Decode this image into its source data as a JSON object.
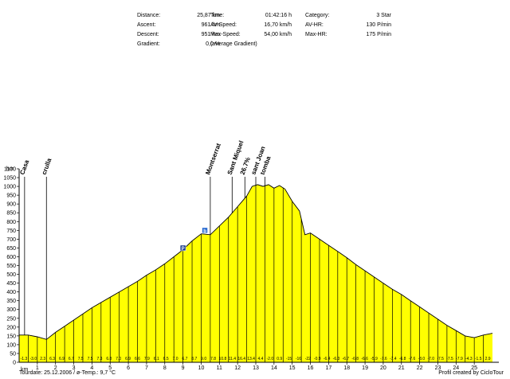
{
  "stats": {
    "col1": [
      {
        "label": "Distance:",
        "value": "25,87 km"
      },
      {
        "label": "Ascent:",
        "value": "961 hm"
      },
      {
        "label": "Descent:",
        "value": "951 hm"
      },
      {
        "label": "Gradient:",
        "value": "0,0 %"
      }
    ],
    "col2": [
      {
        "label": "Time:",
        "value": "01:42:16 h"
      },
      {
        "label": "AV-Speed:",
        "value": "16,70 km/h"
      },
      {
        "label": "Max-Speed:",
        "value": "54,00 km/h"
      },
      {
        "label": "(average Gradient)",
        "value": ""
      }
    ],
    "col3": [
      {
        "label": "Category:",
        "value": "3 Star"
      },
      {
        "label": "AV-HR:",
        "value": "130 P/min"
      },
      {
        "label": "Max-HR:",
        "value": "175 P/min"
      }
    ]
  },
  "footer": {
    "left": "Tourdate: 25.12.2006 / ø-Temp.: 9,7 °C",
    "right": "Profil created by CiclоTour"
  },
  "chart_data": {
    "type": "area",
    "fill_color": "#ffff00",
    "ylabel": "hm",
    "xlabel": "km",
    "ylim": [
      0,
      1100
    ],
    "xlim": [
      0,
      26.2
    ],
    "y_ticks": [
      0,
      50,
      100,
      150,
      200,
      250,
      300,
      350,
      400,
      450,
      500,
      550,
      600,
      650,
      700,
      750,
      800,
      850,
      900,
      950,
      1000,
      1050,
      1100
    ],
    "x_ticks": [
      1,
      2,
      3,
      4,
      5,
      6,
      7,
      8,
      9,
      10,
      11,
      12,
      13,
      14,
      15,
      16,
      17,
      18,
      19,
      20,
      21,
      22,
      23,
      24,
      25
    ],
    "profile": {
      "x": [
        0,
        0.5,
        1.0,
        1.5,
        2.0,
        2.5,
        3.0,
        3.5,
        4.0,
        4.5,
        5.0,
        5.5,
        6.0,
        6.5,
        7.0,
        7.5,
        8.0,
        8.5,
        9.0,
        9.5,
        10.0,
        10.5,
        11.0,
        11.5,
        12.0,
        12.5,
        12.8,
        13.1,
        13.4,
        13.7,
        14.0,
        14.3,
        14.6,
        15.0,
        15.4,
        15.7,
        16.0,
        16.5,
        17.0,
        17.5,
        18.0,
        18.5,
        19.0,
        19.5,
        20.0,
        20.5,
        21.0,
        21.5,
        22.0,
        22.5,
        23.0,
        23.5,
        24.0,
        24.5,
        25.0,
        25.5,
        26.0
      ],
      "y": [
        155,
        155,
        145,
        130,
        170,
        205,
        240,
        275,
        310,
        340,
        370,
        400,
        430,
        460,
        495,
        525,
        560,
        600,
        640,
        690,
        730,
        725,
        775,
        825,
        885,
        945,
        1000,
        1010,
        1000,
        1010,
        990,
        1005,
        985,
        915,
        860,
        725,
        735,
        700,
        665,
        630,
        595,
        555,
        520,
        485,
        450,
        415,
        385,
        350,
        315,
        280,
        245,
        210,
        180,
        150,
        140,
        155,
        165
      ]
    },
    "gradient_labels": [
      "-1.3",
      "-3.0",
      "2.3",
      "6.3",
      "6.9",
      "6.7",
      "7.5",
      "7.5",
      "7.3",
      "6.8",
      "7.0",
      "6.9",
      "6.6",
      "7.9",
      "6.1",
      "6.5",
      "7.0",
      "6.7",
      "8.7",
      "9.0",
      "7.8",
      "10.8",
      "11.4",
      "16.4",
      "13.4",
      "4.4",
      "-2.0",
      "0.9",
      "-15",
      "-16",
      "-22",
      "-0.9",
      "-6.4",
      "-6.3",
      "-6.7",
      "-6.8",
      "-6.6",
      "-5.9",
      "-7.6",
      "-7.4",
      "-6.8",
      "-7.6",
      "-8.0",
      "-7.0",
      "-7.5",
      "-7.5",
      "-7.9",
      "-4.3",
      "-1.5",
      "2.9"
    ],
    "annotations": [
      {
        "label": "Casa",
        "x": 0.3
      },
      {
        "label": "crulla",
        "x": 1.5
      },
      {
        "label": "Montserrat",
        "x": 10.5
      },
      {
        "label": "Sant Miquel",
        "x": 11.7
      },
      {
        "label": "26.7%",
        "x": 12.4
      },
      {
        "label": "sant Joan",
        "x": 13.0
      },
      {
        "label": "tomba",
        "x": 13.5
      }
    ],
    "markers": [
      {
        "label": "P",
        "x": 9.0,
        "y": 650
      },
      {
        "label": "b",
        "x": 10.2,
        "y": 750
      }
    ]
  }
}
